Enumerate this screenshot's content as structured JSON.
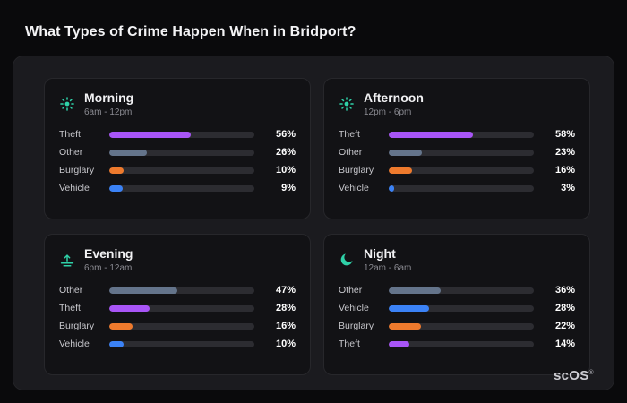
{
  "page": {
    "title": "What Types of Crime Happen When in Bridport?",
    "brand": "scOS",
    "brand_mark": "®"
  },
  "colors": {
    "theft": "#a855f7",
    "other": "#64748b",
    "burglary": "#ee7a2d",
    "vehicle": "#3b82f6",
    "icon": "#2fd1a8",
    "track": "#2c2c31"
  },
  "chart_data": [
    {
      "type": "bar",
      "title": "Morning",
      "subtitle": "6am - 12pm",
      "icon": "sun-icon",
      "unit": "%",
      "xlim": [
        0,
        100
      ],
      "categories": [
        "Theft",
        "Other",
        "Burglary",
        "Vehicle"
      ],
      "values": [
        56,
        26,
        10,
        9
      ]
    },
    {
      "type": "bar",
      "title": "Afternoon",
      "subtitle": "12pm - 6pm",
      "icon": "sun-icon",
      "unit": "%",
      "xlim": [
        0,
        100
      ],
      "categories": [
        "Theft",
        "Other",
        "Burglary",
        "Vehicle"
      ],
      "values": [
        58,
        23,
        16,
        3
      ]
    },
    {
      "type": "bar",
      "title": "Evening",
      "subtitle": "6pm - 12am",
      "icon": "sunset-icon",
      "unit": "%",
      "xlim": [
        0,
        100
      ],
      "categories": [
        "Other",
        "Theft",
        "Burglary",
        "Vehicle"
      ],
      "values": [
        47,
        28,
        16,
        10
      ]
    },
    {
      "type": "bar",
      "title": "Night",
      "subtitle": "12am - 6am",
      "icon": "moon-icon",
      "unit": "%",
      "xlim": [
        0,
        100
      ],
      "categories": [
        "Other",
        "Vehicle",
        "Burglary",
        "Theft"
      ],
      "values": [
        36,
        28,
        22,
        14
      ]
    }
  ]
}
